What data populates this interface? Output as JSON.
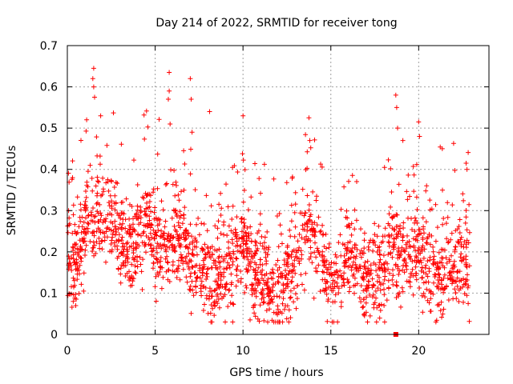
{
  "chart_data": {
    "type": "scatter",
    "title": "Day 214 of 2022, SRMTID for receiver tong",
    "xlabel": "GPS time / hours",
    "ylabel": "SRMTID / TECUs",
    "xlim": [
      0,
      24
    ],
    "ylim": [
      0,
      0.7
    ],
    "xticks": [
      0,
      5,
      10,
      15,
      20
    ],
    "xtick_labels": [
      "0",
      "5",
      "10",
      "15",
      "20"
    ],
    "yticks": [
      0,
      0.1,
      0.2,
      0.3,
      0.4,
      0.5,
      0.6,
      0.7
    ],
    "ytick_labels": [
      "0",
      "0.1",
      "0.2",
      "0.3",
      "0.4",
      "0.5",
      "0.6",
      "0.7"
    ],
    "grid": true,
    "marker": "plus",
    "color": "#ff0000",
    "series": [
      {
        "name": "SRMTID",
        "data_note": "thousands of plus markers from 0 to ~23 h; baseline curve below, sparse high outliers listed in spikes",
        "baseline": [
          [
            0.0,
            0.21
          ],
          [
            0.5,
            0.16
          ],
          [
            1.0,
            0.26
          ],
          [
            1.5,
            0.3
          ],
          [
            2.0,
            0.29
          ],
          [
            2.5,
            0.28
          ],
          [
            3.0,
            0.23
          ],
          [
            3.5,
            0.22
          ],
          [
            4.0,
            0.24
          ],
          [
            4.5,
            0.27
          ],
          [
            5.0,
            0.22
          ],
          [
            5.5,
            0.21
          ],
          [
            6.0,
            0.24
          ],
          [
            6.5,
            0.25
          ],
          [
            7.0,
            0.19
          ],
          [
            7.5,
            0.15
          ],
          [
            8.0,
            0.14
          ],
          [
            8.5,
            0.16
          ],
          [
            9.0,
            0.15
          ],
          [
            9.5,
            0.2
          ],
          [
            10.0,
            0.23
          ],
          [
            10.5,
            0.16
          ],
          [
            11.0,
            0.14
          ],
          [
            11.5,
            0.12
          ],
          [
            12.0,
            0.11
          ],
          [
            12.5,
            0.14
          ],
          [
            13.0,
            0.17
          ],
          [
            13.5,
            0.25
          ],
          [
            14.0,
            0.26
          ],
          [
            14.5,
            0.19
          ],
          [
            15.0,
            0.12
          ],
          [
            15.5,
            0.16
          ],
          [
            16.0,
            0.18
          ],
          [
            16.5,
            0.17
          ],
          [
            17.0,
            0.14
          ],
          [
            17.5,
            0.13
          ],
          [
            18.0,
            0.16
          ],
          [
            18.5,
            0.22
          ],
          [
            19.0,
            0.17
          ],
          [
            19.5,
            0.2
          ],
          [
            20.0,
            0.22
          ],
          [
            20.5,
            0.15
          ],
          [
            21.0,
            0.13
          ],
          [
            21.5,
            0.15
          ],
          [
            22.0,
            0.17
          ],
          [
            22.5,
            0.18
          ],
          [
            22.9,
            0.17
          ]
        ],
        "spikes": [
          [
            1.5,
            0.645
          ],
          [
            1.45,
            0.62
          ],
          [
            1.5,
            0.6
          ],
          [
            1.55,
            0.575
          ],
          [
            1.9,
            0.53
          ],
          [
            1.1,
            0.52
          ],
          [
            5.8,
            0.635
          ],
          [
            5.8,
            0.59
          ],
          [
            5.75,
            0.57
          ],
          [
            5.85,
            0.51
          ],
          [
            7.0,
            0.62
          ],
          [
            7.05,
            0.57
          ],
          [
            7.1,
            0.49
          ],
          [
            8.1,
            0.54
          ],
          [
            10.0,
            0.53
          ],
          [
            13.75,
            0.525
          ],
          [
            13.8,
            0.47
          ],
          [
            18.7,
            0.58
          ],
          [
            18.75,
            0.55
          ],
          [
            18.8,
            0.5
          ],
          [
            19.1,
            0.47
          ],
          [
            20.0,
            0.515
          ],
          [
            20.05,
            0.48
          ],
          [
            22.7,
            0.415
          ],
          [
            22.75,
            0.4
          ]
        ],
        "floor_points": [
          [
            18.7,
            0.0
          ]
        ]
      }
    ]
  }
}
